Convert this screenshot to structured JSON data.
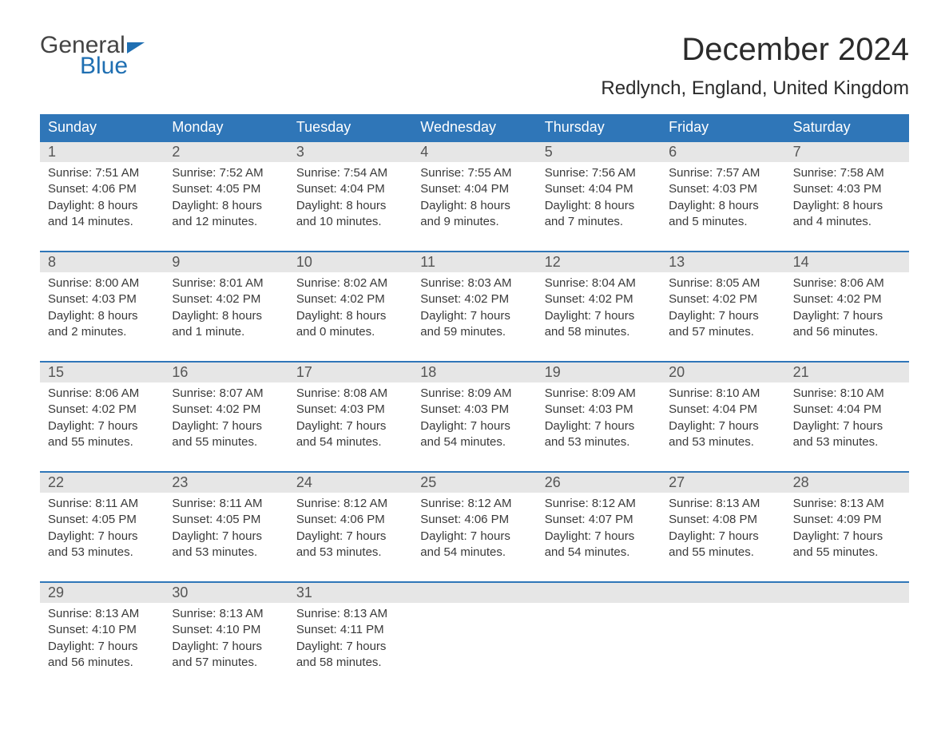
{
  "logo": {
    "word1": "General",
    "word2": "Blue"
  },
  "title": "December 2024",
  "location": "Redlynch, England, United Kingdom",
  "colors": {
    "header_bg": "#2f76b8",
    "header_text": "#ffffff",
    "daynum_bg": "#e6e6e6",
    "daynum_text": "#555555",
    "body_text": "#3a3a3a",
    "logo_gray": "#444444",
    "logo_blue": "#1f6fb2",
    "rule": "#2f76b8"
  },
  "weekdays": [
    "Sunday",
    "Monday",
    "Tuesday",
    "Wednesday",
    "Thursday",
    "Friday",
    "Saturday"
  ],
  "weeks": [
    [
      {
        "n": "1",
        "sunrise": "Sunrise: 7:51 AM",
        "sunset": "Sunset: 4:06 PM",
        "d1": "Daylight: 8 hours",
        "d2": "and 14 minutes."
      },
      {
        "n": "2",
        "sunrise": "Sunrise: 7:52 AM",
        "sunset": "Sunset: 4:05 PM",
        "d1": "Daylight: 8 hours",
        "d2": "and 12 minutes."
      },
      {
        "n": "3",
        "sunrise": "Sunrise: 7:54 AM",
        "sunset": "Sunset: 4:04 PM",
        "d1": "Daylight: 8 hours",
        "d2": "and 10 minutes."
      },
      {
        "n": "4",
        "sunrise": "Sunrise: 7:55 AM",
        "sunset": "Sunset: 4:04 PM",
        "d1": "Daylight: 8 hours",
        "d2": "and 9 minutes."
      },
      {
        "n": "5",
        "sunrise": "Sunrise: 7:56 AM",
        "sunset": "Sunset: 4:04 PM",
        "d1": "Daylight: 8 hours",
        "d2": "and 7 minutes."
      },
      {
        "n": "6",
        "sunrise": "Sunrise: 7:57 AM",
        "sunset": "Sunset: 4:03 PM",
        "d1": "Daylight: 8 hours",
        "d2": "and 5 minutes."
      },
      {
        "n": "7",
        "sunrise": "Sunrise: 7:58 AM",
        "sunset": "Sunset: 4:03 PM",
        "d1": "Daylight: 8 hours",
        "d2": "and 4 minutes."
      }
    ],
    [
      {
        "n": "8",
        "sunrise": "Sunrise: 8:00 AM",
        "sunset": "Sunset: 4:03 PM",
        "d1": "Daylight: 8 hours",
        "d2": "and 2 minutes."
      },
      {
        "n": "9",
        "sunrise": "Sunrise: 8:01 AM",
        "sunset": "Sunset: 4:02 PM",
        "d1": "Daylight: 8 hours",
        "d2": "and 1 minute."
      },
      {
        "n": "10",
        "sunrise": "Sunrise: 8:02 AM",
        "sunset": "Sunset: 4:02 PM",
        "d1": "Daylight: 8 hours",
        "d2": "and 0 minutes."
      },
      {
        "n": "11",
        "sunrise": "Sunrise: 8:03 AM",
        "sunset": "Sunset: 4:02 PM",
        "d1": "Daylight: 7 hours",
        "d2": "and 59 minutes."
      },
      {
        "n": "12",
        "sunrise": "Sunrise: 8:04 AM",
        "sunset": "Sunset: 4:02 PM",
        "d1": "Daylight: 7 hours",
        "d2": "and 58 minutes."
      },
      {
        "n": "13",
        "sunrise": "Sunrise: 8:05 AM",
        "sunset": "Sunset: 4:02 PM",
        "d1": "Daylight: 7 hours",
        "d2": "and 57 minutes."
      },
      {
        "n": "14",
        "sunrise": "Sunrise: 8:06 AM",
        "sunset": "Sunset: 4:02 PM",
        "d1": "Daylight: 7 hours",
        "d2": "and 56 minutes."
      }
    ],
    [
      {
        "n": "15",
        "sunrise": "Sunrise: 8:06 AM",
        "sunset": "Sunset: 4:02 PM",
        "d1": "Daylight: 7 hours",
        "d2": "and 55 minutes."
      },
      {
        "n": "16",
        "sunrise": "Sunrise: 8:07 AM",
        "sunset": "Sunset: 4:02 PM",
        "d1": "Daylight: 7 hours",
        "d2": "and 55 minutes."
      },
      {
        "n": "17",
        "sunrise": "Sunrise: 8:08 AM",
        "sunset": "Sunset: 4:03 PM",
        "d1": "Daylight: 7 hours",
        "d2": "and 54 minutes."
      },
      {
        "n": "18",
        "sunrise": "Sunrise: 8:09 AM",
        "sunset": "Sunset: 4:03 PM",
        "d1": "Daylight: 7 hours",
        "d2": "and 54 minutes."
      },
      {
        "n": "19",
        "sunrise": "Sunrise: 8:09 AM",
        "sunset": "Sunset: 4:03 PM",
        "d1": "Daylight: 7 hours",
        "d2": "and 53 minutes."
      },
      {
        "n": "20",
        "sunrise": "Sunrise: 8:10 AM",
        "sunset": "Sunset: 4:04 PM",
        "d1": "Daylight: 7 hours",
        "d2": "and 53 minutes."
      },
      {
        "n": "21",
        "sunrise": "Sunrise: 8:10 AM",
        "sunset": "Sunset: 4:04 PM",
        "d1": "Daylight: 7 hours",
        "d2": "and 53 minutes."
      }
    ],
    [
      {
        "n": "22",
        "sunrise": "Sunrise: 8:11 AM",
        "sunset": "Sunset: 4:05 PM",
        "d1": "Daylight: 7 hours",
        "d2": "and 53 minutes."
      },
      {
        "n": "23",
        "sunrise": "Sunrise: 8:11 AM",
        "sunset": "Sunset: 4:05 PM",
        "d1": "Daylight: 7 hours",
        "d2": "and 53 minutes."
      },
      {
        "n": "24",
        "sunrise": "Sunrise: 8:12 AM",
        "sunset": "Sunset: 4:06 PM",
        "d1": "Daylight: 7 hours",
        "d2": "and 53 minutes."
      },
      {
        "n": "25",
        "sunrise": "Sunrise: 8:12 AM",
        "sunset": "Sunset: 4:06 PM",
        "d1": "Daylight: 7 hours",
        "d2": "and 54 minutes."
      },
      {
        "n": "26",
        "sunrise": "Sunrise: 8:12 AM",
        "sunset": "Sunset: 4:07 PM",
        "d1": "Daylight: 7 hours",
        "d2": "and 54 minutes."
      },
      {
        "n": "27",
        "sunrise": "Sunrise: 8:13 AM",
        "sunset": "Sunset: 4:08 PM",
        "d1": "Daylight: 7 hours",
        "d2": "and 55 minutes."
      },
      {
        "n": "28",
        "sunrise": "Sunrise: 8:13 AM",
        "sunset": "Sunset: 4:09 PM",
        "d1": "Daylight: 7 hours",
        "d2": "and 55 minutes."
      }
    ],
    [
      {
        "n": "29",
        "sunrise": "Sunrise: 8:13 AM",
        "sunset": "Sunset: 4:10 PM",
        "d1": "Daylight: 7 hours",
        "d2": "and 56 minutes."
      },
      {
        "n": "30",
        "sunrise": "Sunrise: 8:13 AM",
        "sunset": "Sunset: 4:10 PM",
        "d1": "Daylight: 7 hours",
        "d2": "and 57 minutes."
      },
      {
        "n": "31",
        "sunrise": "Sunrise: 8:13 AM",
        "sunset": "Sunset: 4:11 PM",
        "d1": "Daylight: 7 hours",
        "d2": "and 58 minutes."
      },
      null,
      null,
      null,
      null
    ]
  ]
}
